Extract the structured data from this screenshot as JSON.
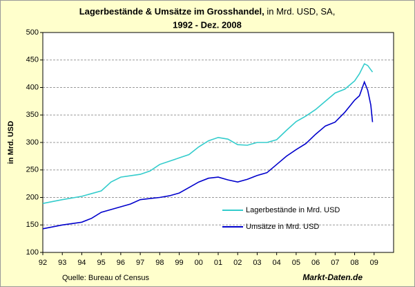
{
  "chart_data": {
    "type": "line",
    "title": "Lagerbestände & Umsätze im Grosshandel,",
    "subtitle": "in Mrd. USD, SA,",
    "title_line2": "1992 - Dez. 2008",
    "y_label": "in Mrd. USD",
    "source": "Quelle: Bureau of Census",
    "brand": "Markt-Daten.de",
    "xlim": [
      1992,
      2010
    ],
    "xticks": [
      {
        "value": 1992,
        "label": "92"
      },
      {
        "value": 1993,
        "label": "93"
      },
      {
        "value": 1994,
        "label": "94"
      },
      {
        "value": 1995,
        "label": "95"
      },
      {
        "value": 1996,
        "label": "96"
      },
      {
        "value": 1997,
        "label": "97"
      },
      {
        "value": 1998,
        "label": "98"
      },
      {
        "value": 1999,
        "label": "99"
      },
      {
        "value": 2000,
        "label": "00"
      },
      {
        "value": 2001,
        "label": "01"
      },
      {
        "value": 2002,
        "label": "02"
      },
      {
        "value": 2003,
        "label": "03"
      },
      {
        "value": 2004,
        "label": "04"
      },
      {
        "value": 2005,
        "label": "05"
      },
      {
        "value": 2006,
        "label": "06"
      },
      {
        "value": 2007,
        "label": "07"
      },
      {
        "value": 2008,
        "label": "08"
      },
      {
        "value": 2009,
        "label": "09"
      }
    ],
    "ylim": [
      100,
      500
    ],
    "yticks": [
      100,
      150,
      200,
      250,
      300,
      350,
      400,
      450,
      500
    ],
    "grid": true,
    "legend": "lower right",
    "series": [
      {
        "name": "Lagerbestände in Mrd. USD",
        "color": "#33cccc",
        "x": [
          1992,
          1993,
          1994,
          1995,
          1995.5,
          1996,
          1997,
          1997.5,
          1998,
          1999,
          1999.5,
          2000,
          2000.5,
          2001,
          2001.5,
          2002,
          2002.5,
          2003,
          2003.5,
          2004,
          2004.5,
          2005,
          2005.5,
          2006,
          2006.5,
          2007,
          2007.5,
          2008,
          2008.25,
          2008.5,
          2008.67,
          2008.92
        ],
        "values": [
          189,
          196,
          202,
          212,
          228,
          237,
          242,
          248,
          260,
          272,
          278,
          292,
          303,
          309,
          306,
          296,
          295,
          300,
          300,
          305,
          322,
          338,
          348,
          360,
          375,
          390,
          397,
          412,
          425,
          443,
          440,
          428
        ]
      },
      {
        "name": "Umsätze in Mrd. USD",
        "color": "#0000cc",
        "x": [
          1992,
          1993,
          1994,
          1994.5,
          1995,
          1995.5,
          1996,
          1996.5,
          1997,
          1997.5,
          1998,
          1998.5,
          1999,
          1999.5,
          2000,
          2000.5,
          2001,
          2001.5,
          2002,
          2002.5,
          2003,
          2003.5,
          2004,
          2004.5,
          2005,
          2005.5,
          2006,
          2006.5,
          2007,
          2007.5,
          2008,
          2008.25,
          2008.5,
          2008.67,
          2008.83,
          2008.92
        ],
        "values": [
          143,
          150,
          155,
          162,
          173,
          178,
          183,
          188,
          196,
          198,
          200,
          203,
          208,
          218,
          228,
          235,
          237,
          232,
          228,
          233,
          240,
          245,
          260,
          275,
          287,
          298,
          315,
          330,
          337,
          355,
          377,
          385,
          410,
          395,
          368,
          337
        ]
      }
    ]
  }
}
